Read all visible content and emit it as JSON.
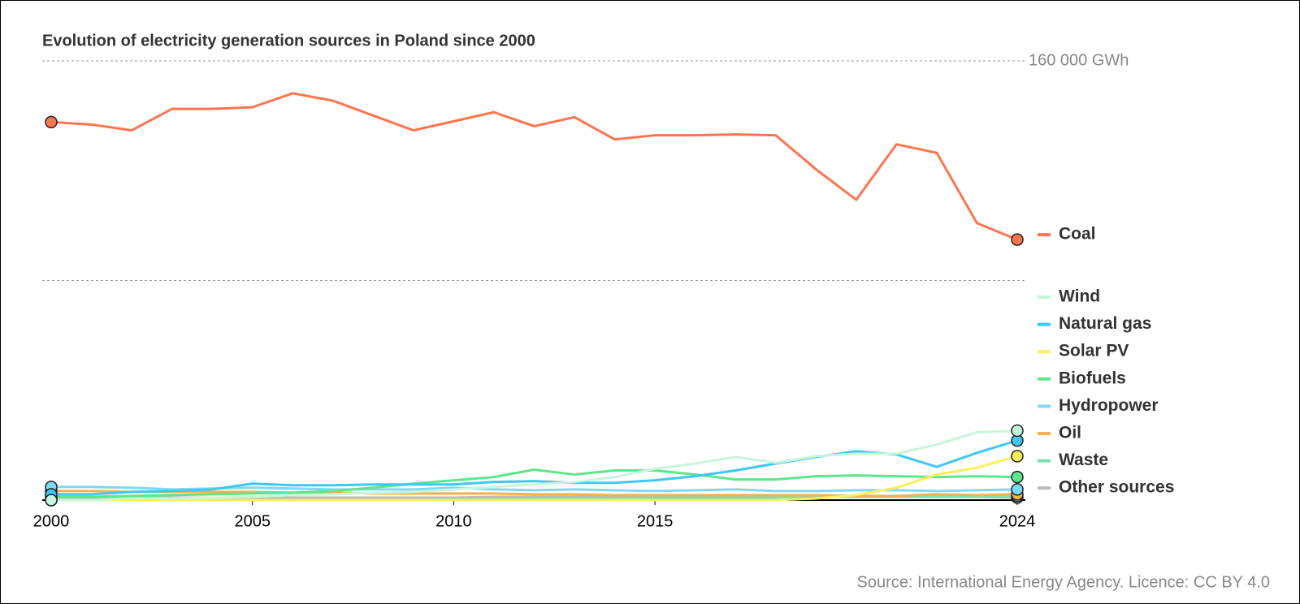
{
  "chart_data": {
    "type": "line",
    "title": "Evolution of electricity generation sources in Poland since 2000",
    "source": "Source: International Energy Agency. Licence: CC BY 4.0",
    "x": [
      2000,
      2001,
      2002,
      2003,
      2004,
      2005,
      2006,
      2007,
      2008,
      2009,
      2010,
      2011,
      2012,
      2013,
      2014,
      2015,
      2016,
      2017,
      2018,
      2019,
      2020,
      2021,
      2022,
      2023,
      2024
    ],
    "xlim": [
      2000,
      2024
    ],
    "xticks": [
      2000,
      2005,
      2010,
      2015,
      2024
    ],
    "ylim": [
      0,
      160000
    ],
    "yticks": [
      {
        "value": 160000,
        "label": "160 000 GWh"
      }
    ],
    "ygrid": [
      80000
    ],
    "series": [
      {
        "name": "Coal",
        "color": "#ff7550",
        "values": [
          137700,
          136800,
          134700,
          142500,
          142500,
          143100,
          148200,
          145500,
          140100,
          134700,
          138000,
          141300,
          136200,
          139500,
          131400,
          132900,
          132900,
          133200,
          132900,
          120500,
          109400,
          129600,
          126500,
          100900,
          94900
        ]
      },
      {
        "name": "Wind",
        "color": "#c8f5dc",
        "values": [
          0,
          0,
          600,
          600,
          900,
          1200,
          1800,
          2100,
          2700,
          3000,
          3900,
          4800,
          5700,
          6600,
          8400,
          11400,
          13300,
          15700,
          13600,
          16000,
          16900,
          16900,
          20200,
          24700,
          25300
        ]
      },
      {
        "name": "Natural gas",
        "color": "#3ec8f5",
        "values": [
          2100,
          2100,
          3000,
          3300,
          3900,
          6000,
          5400,
          5400,
          5700,
          5700,
          5700,
          6600,
          6900,
          6300,
          6300,
          7200,
          8700,
          10800,
          13300,
          15700,
          17800,
          16600,
          12100,
          17200,
          21700
        ]
      },
      {
        "name": "Solar PV",
        "color": "#fbf05a",
        "values": [
          0,
          0,
          0,
          0,
          0,
          0,
          0,
          0,
          0,
          0,
          0,
          0,
          0,
          0,
          0,
          0,
          0,
          0,
          0,
          600,
          1800,
          4500,
          9300,
          11800,
          16000
        ]
      },
      {
        "name": "Biofuels",
        "color": "#5de68b",
        "values": [
          1200,
          1200,
          1500,
          1800,
          2100,
          2400,
          2700,
          3300,
          4500,
          6000,
          7200,
          8400,
          11100,
          9300,
          10800,
          10800,
          9300,
          7500,
          7500,
          8700,
          9000,
          8700,
          8400,
          8700,
          8400
        ]
      },
      {
        "name": "Hydropower",
        "color": "#7fd8f7",
        "values": [
          4800,
          4800,
          4500,
          3900,
          4200,
          4500,
          4200,
          3900,
          3900,
          3900,
          4500,
          3900,
          3600,
          3900,
          3600,
          3300,
          3600,
          3900,
          3300,
          3300,
          3600,
          3600,
          3300,
          3600,
          3900
        ]
      },
      {
        "name": "Oil",
        "color": "#f5b14a",
        "values": [
          3300,
          3300,
          3000,
          3000,
          3000,
          3000,
          2700,
          2700,
          2400,
          2400,
          2400,
          2400,
          2100,
          2100,
          1800,
          1800,
          1800,
          1800,
          1800,
          1800,
          1500,
          1500,
          2100,
          1800,
          2100
        ]
      },
      {
        "name": "Waste",
        "color": "#7de0b0",
        "values": [
          0,
          0,
          0,
          0,
          0,
          0,
          0,
          0,
          0,
          0,
          300,
          300,
          600,
          600,
          600,
          900,
          900,
          900,
          900,
          1200,
          1200,
          1200,
          1200,
          1200,
          1500
        ]
      },
      {
        "name": "Other sources",
        "color": "#bbbbbb",
        "values": [
          900,
          900,
          900,
          900,
          900,
          900,
          900,
          900,
          900,
          900,
          900,
          1200,
          1200,
          1200,
          1200,
          1200,
          1500,
          1200,
          1200,
          1200,
          1200,
          1500,
          1500,
          1200,
          900
        ]
      }
    ]
  }
}
